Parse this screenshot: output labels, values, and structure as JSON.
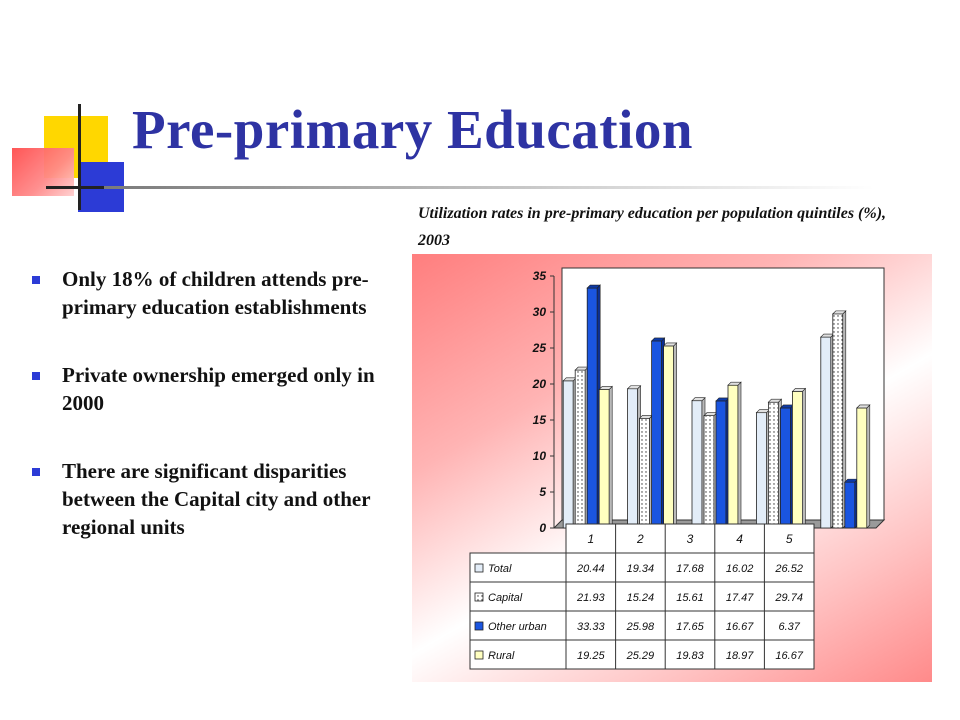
{
  "slide": {
    "title": "Pre-primary Education",
    "bullets": [
      "Only 18% of children attends pre-primary education establishments",
      "Private ownership emerged only in 2000",
      "There are significant disparities between the Capital city and other regional units"
    ]
  },
  "colors": {
    "title": "#2e33a3",
    "accent_blue": "#2c3bd6",
    "accent_yellow": "#ffd700",
    "accent_red": "#ff4d4d"
  },
  "chart_data": {
    "type": "bar",
    "title": "Utilization rates in pre-primary education per population quintiles (%), 2003",
    "categories": [
      "1",
      "2",
      "3",
      "4",
      "5"
    ],
    "ylim": [
      0,
      35
    ],
    "yticks": [
      "0",
      "5",
      "10",
      "15",
      "20",
      "25",
      "30",
      "35"
    ],
    "grid": false,
    "legend": "table-below",
    "series": [
      {
        "name": "Total",
        "values": [
          20.44,
          19.34,
          17.68,
          16.02,
          26.52
        ],
        "labels": [
          "20.44",
          "19.34",
          "17.68",
          "16.02",
          "26.52"
        ],
        "color": "#e3edf8",
        "pattern": "none"
      },
      {
        "name": "Capital",
        "values": [
          21.93,
          15.24,
          15.61,
          17.47,
          29.74
        ],
        "labels": [
          "21.93",
          "15.24",
          "15.61",
          "17.47",
          "29.74"
        ],
        "color": "#ffffff",
        "pattern": "dots"
      },
      {
        "name": "Other urban",
        "values": [
          33.33,
          25.98,
          17.65,
          16.67,
          6.37
        ],
        "labels": [
          "33.33",
          "25.98",
          "17.65",
          "16.67",
          "6.37"
        ],
        "color": "#1a55e0",
        "pattern": "none"
      },
      {
        "name": "Rural",
        "values": [
          19.25,
          25.29,
          19.83,
          18.97,
          16.67
        ],
        "labels": [
          "19.25",
          "25.29",
          "19.83",
          "18.97",
          "16.67"
        ],
        "color": "#ffffc0",
        "pattern": "none"
      }
    ]
  }
}
